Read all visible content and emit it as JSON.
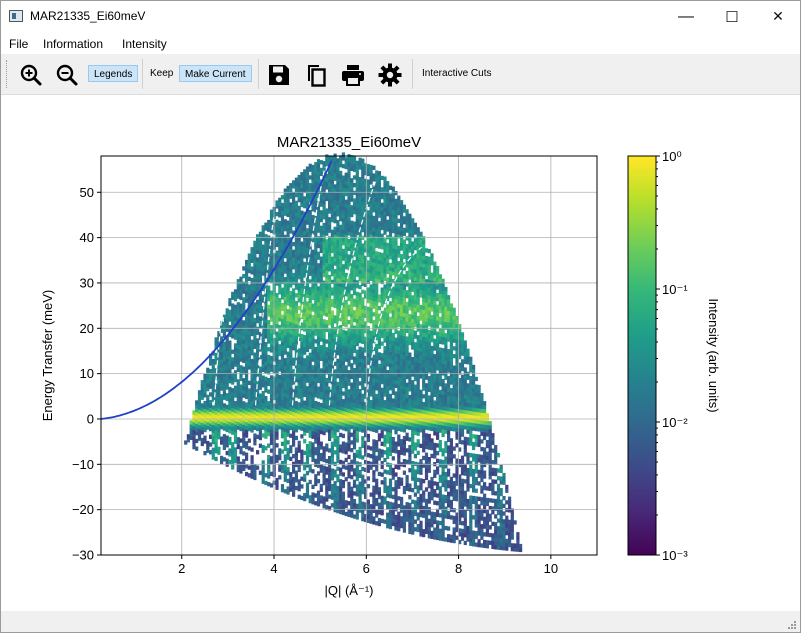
{
  "window": {
    "title": "MAR21335_Ei60meV",
    "controls": {
      "minimize": "—",
      "maximize": "☐",
      "close": "✕"
    }
  },
  "menu": {
    "items": [
      "File",
      "Information",
      "Intensity"
    ]
  },
  "toolbar": {
    "legends_label": "Legends",
    "keep_label": "Keep",
    "make_current_label": "Make Current",
    "interactive_cuts_label": "Interactive Cuts",
    "icons": [
      "zoom-in-icon",
      "zoom-out-icon",
      "save-icon",
      "copy-icon",
      "print-icon",
      "gear-icon"
    ]
  },
  "chart_data": {
    "type": "heatmap",
    "title": "MAR21335_Ei60meV",
    "xlabel": "|Q| (Å⁻¹)",
    "ylabel": "Energy Transfer (meV)",
    "xlim": [
      0.25,
      11.0
    ],
    "ylim": [
      -30,
      58
    ],
    "xticks": [
      "2",
      "4",
      "6",
      "8",
      "10"
    ],
    "yticks": [
      "50",
      "40",
      "30",
      "20",
      "10",
      "0",
      "−10",
      "−20",
      "−30"
    ],
    "grid": true,
    "colormap": "viridis",
    "colorbar": {
      "label": "Intensity (arb. units)",
      "scale": "log",
      "ticks": [
        "10⁰",
        "10⁻¹",
        "10⁻²",
        "10⁻³"
      ],
      "range": [
        0.001,
        1
      ]
    },
    "overlay_curve": {
      "color": "#2040c8"
    }
  }
}
